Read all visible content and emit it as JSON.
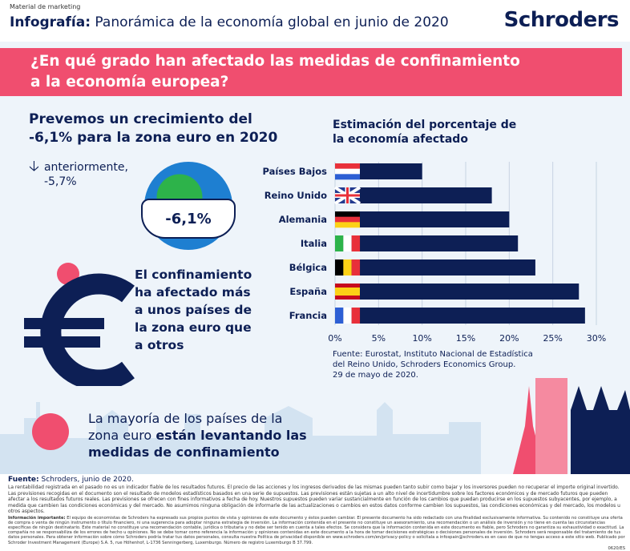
{
  "header": {
    "marketing": "Material de marketing",
    "title_bold": "Infografía:",
    "title_rest": " Panorámica de la economía global en junio de 2020",
    "logo": "Schroders"
  },
  "banner": {
    "line1": "¿En qué grado han afectado las medidas de confinamiento",
    "line2": "a la economía europea?"
  },
  "left": {
    "headline1": "Prevemos un crecimiento del",
    "headline2": "-6,1% para la zona euro en 2020",
    "previous_label": "anteriormente,",
    "previous_value": "-5,7%",
    "globe_value": "-6,1%",
    "confinement": [
      "El confinamiento",
      "ha afectado más",
      "a unos países de",
      "la zona euro que",
      "a otros"
    ]
  },
  "chart_data": {
    "type": "bar",
    "orientation": "horizontal",
    "title": "Estimación del porcentaje de la economía afectado",
    "categories": [
      "Países Bajos",
      "Reino Unido",
      "Alemania",
      "Italia",
      "Bélgica",
      "España",
      "Francia"
    ],
    "values": [
      10,
      18,
      20,
      21,
      23,
      28,
      28.7
    ],
    "xlim": [
      0,
      30
    ],
    "ticks": [
      "0%",
      "5%",
      "10%",
      "15%",
      "20%",
      "25%",
      "30%"
    ],
    "grid": true,
    "bar_color": "#0d1f55"
  },
  "source": {
    "line1": "Fuente: Eurostat, Instituto Nacional de Estadística",
    "line2": "del Reino Unido, Schroders Economics Group.",
    "line3": "29 de mayo de 2020."
  },
  "bottom": {
    "line1": "La mayoría de los países de la",
    "line2a": "zona euro ",
    "line2b": "están levantando las",
    "line3": "medidas de confinamiento"
  },
  "footer": {
    "source_bold": "Fuente:",
    "source_rest": " Schroders, junio de 2020.",
    "disclaimer": "La rentabilidad registrada en el pasado no es un indicador fiable de los resultados futuros. El precio de las acciones y los ingresos derivados de las mismas pueden tanto subir como bajar y los inversores pueden no recuperar el importe original invertido. Las previsiones recogidas en el documento son el resultado de modelos estadísticos basados en una serie de supuestos. Las previsiones están sujetas a un alto nivel de incertidumbre sobre los factores económicos y de mercado futuros que pueden afectar a los resultados futuros reales. Las previsiones se ofrecen con fines informativos a fecha de hoy. Nuestros supuestos pueden variar sustancialmente en función de los cambios que puedan producirse en los supuestos subyacentes, por ejemplo, a medida que cambien las condiciones económicas y del mercado. No asumimos ninguna obligación de informarle de las actualizaciones o cambios en estos datos conforme cambien los supuestos, las condiciones económicas y del mercado, los modelos u otros aspectos.",
    "important_bold": "Información importante:",
    "important": " El equipo de economistas de Schroders ha expresado sus propios puntos de vista y opiniones de este documento y éstos pueden cambiar. El presente documento ha sido redactado con una finalidad exclusivamente informativa. Su contenido no constituye una oferta de compra o venta de ningún instrumento o título financiero, ni una sugerencia para adoptar ninguna estrategia de inversión. La información contenida en el presente no constituye un asesoramiento, una recomendación o un análisis de inversión y no tiene en cuenta las circunstancias específicas de ningún destinatario. Este material no constituye una recomendación contable, jurídica o tributaria y no debe ser tenido en cuenta a tales efectos. Se considera que la información contenida en este documento es fiable, pero Schroders no garantiza su exhaustividad o exactitud. La compañía no se responsabiliza de los errores de hecho u opiniones. No se debe tomar como referencia la información y opiniones contenidas en este documento a la hora de tomar decisiones estratégicas o decisiones personales de inversión. Schroders será responsable del tratamiento de tus datos personales. Para obtener información sobre cómo Schroders podría tratar tus datos personales, consulta nuestra Política de privacidad disponible en www.schroders.com/en/privacy-policy o solicítala a infospain@schroders.es en caso de que no tengas acceso a este sitio web. Publicado por Schroder Investment Management (Europe) S.A. 5, rue Höhenhof, L-1736 Senningerberg, Luxemburgo. Número de registro Luxemburgo B 37.799.",
    "code": "0620/ES"
  },
  "colors": {
    "navy": "#0d1f55",
    "pink": "#f04e6f",
    "background": "#eef4fa"
  }
}
